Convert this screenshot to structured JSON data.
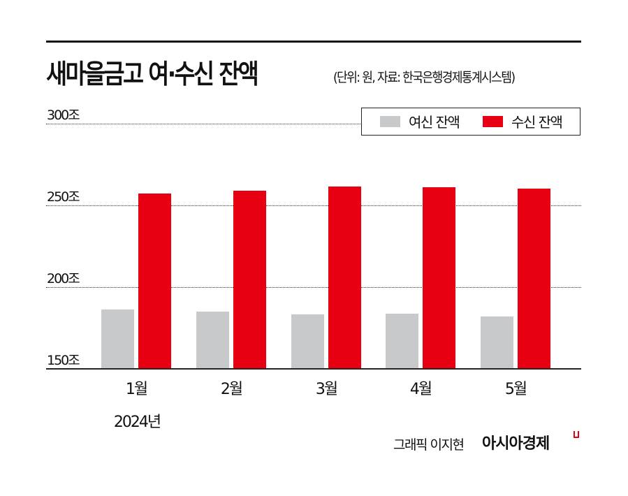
{
  "header": {
    "title": "새마을금고 여·수신 잔액",
    "subtitle": "(단위: 원, 자료: 한국은행경제통계시스템)"
  },
  "legend": {
    "items": [
      {
        "label": "여신 잔액",
        "color": "#c8c9cb"
      },
      {
        "label": "수신 잔액",
        "color": "#e60012"
      }
    ]
  },
  "axis": {
    "y_ticks": [
      "300조",
      "250조",
      "200조",
      "150조"
    ],
    "x_labels": [
      "1월",
      "2월",
      "3월",
      "4월",
      "5월"
    ],
    "x_year": "2024년"
  },
  "footer": {
    "credit": "그래픽 이지현",
    "brand": "아시아경제"
  },
  "chart_data": {
    "type": "bar",
    "title": "새마을금고 여·수신 잔액",
    "subtitle": "(단위: 원, 자료: 한국은행경제통계시스템)",
    "xlabel": "2024년",
    "ylabel": "",
    "categories": [
      "1월",
      "2월",
      "3월",
      "4월",
      "5월"
    ],
    "series": [
      {
        "name": "여신 잔액",
        "color": "#c8c9cb",
        "values": [
          186.3,
          185.0,
          183.3,
          183.8,
          182.0
        ]
      },
      {
        "name": "수신 잔액",
        "color": "#e60012",
        "values": [
          257.3,
          259.0,
          261.5,
          261.0,
          260.3
        ]
      }
    ],
    "ylim": [
      150,
      300
    ],
    "yticks": [
      150,
      200,
      250,
      300
    ],
    "ytick_labels": [
      "150조",
      "200조",
      "250조",
      "300조"
    ],
    "grid": "horizontal dotted",
    "legend_position": "top-right"
  }
}
